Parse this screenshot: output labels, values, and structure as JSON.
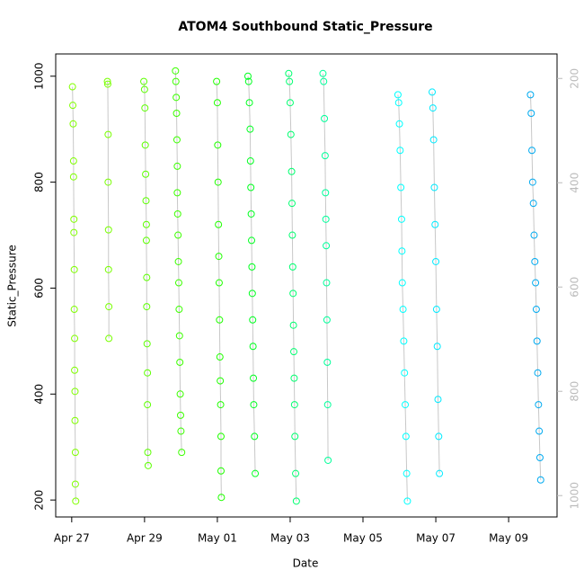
{
  "chart_data": {
    "type": "scatter",
    "title": "ATOM4 Southbound Static_Pressure",
    "x_label": "Date",
    "y_label": "Static_Pressure",
    "xlim": [
      26.56,
      40.33
    ],
    "ylim": [
      168,
      1042
    ],
    "y2lim": [
      1041,
      153
    ],
    "xticks": [
      {
        "value": 27,
        "label": "Apr 27"
      },
      {
        "value": 29,
        "label": "Apr 29"
      },
      {
        "value": 31,
        "label": "May 01"
      },
      {
        "value": 33,
        "label": "May 03"
      },
      {
        "value": 35,
        "label": "May 05"
      },
      {
        "value": 37,
        "label": "May 07"
      },
      {
        "value": 39,
        "label": "May 09"
      }
    ],
    "yticks": [
      200,
      400,
      600,
      800,
      1000
    ],
    "y2ticks": [
      200,
      400,
      600,
      800,
      1000
    ],
    "series": [
      {
        "color": "#80ff00",
        "x": [
          27.02,
          27.03,
          27.04,
          27.05,
          27.05,
          27.06,
          27.06,
          27.07,
          27.07,
          27.08,
          27.08,
          27.09,
          27.09,
          27.1,
          27.1,
          27.11
        ],
        "values": [
          980,
          945,
          910,
          840,
          810,
          730,
          705,
          635,
          560,
          505,
          445,
          405,
          350,
          290,
          230,
          198
        ]
      },
      {
        "color": "#78ff00",
        "x": [
          27.98,
          27.99,
          28.0,
          28.0,
          28.01,
          28.01,
          28.02,
          28.02
        ],
        "values": [
          990,
          985,
          890,
          800,
          710,
          635,
          565,
          505
        ]
      },
      {
        "color": "#5cff00",
        "x": [
          28.98,
          29.0,
          29.01,
          29.02,
          29.03,
          29.04,
          29.05,
          29.05,
          29.06,
          29.06,
          29.07,
          29.08,
          29.08,
          29.09,
          29.1
        ],
        "values": [
          990,
          975,
          940,
          870,
          815,
          765,
          720,
          690,
          620,
          565,
          495,
          440,
          380,
          290,
          265
        ]
      },
      {
        "color": "#3cff00",
        "x": [
          29.85,
          29.86,
          29.87,
          29.88,
          29.89,
          29.9,
          29.9,
          29.91,
          29.92,
          29.93,
          29.94,
          29.95,
          29.96,
          29.97,
          29.98,
          29.99,
          30.0,
          30.02
        ],
        "values": [
          1010,
          990,
          960,
          930,
          880,
          830,
          780,
          740,
          700,
          650,
          610,
          560,
          510,
          460,
          400,
          360,
          330,
          290
        ]
      },
      {
        "color": "#20ff00",
        "x": [
          30.98,
          31.0,
          31.01,
          31.02,
          31.03,
          31.04,
          31.05,
          31.06,
          31.07,
          31.08,
          31.09,
          31.1,
          31.1,
          31.11
        ],
        "values": [
          990,
          950,
          870,
          800,
          720,
          660,
          610,
          540,
          470,
          425,
          380,
          320,
          255,
          205
        ]
      },
      {
        "color": "#00ff20",
        "x": [
          31.84,
          31.86,
          31.88,
          31.9,
          31.91,
          31.92,
          31.93,
          31.94,
          31.95,
          31.96,
          31.97,
          31.98,
          31.99,
          32.0,
          32.02,
          32.04
        ],
        "values": [
          1000,
          990,
          950,
          900,
          840,
          790,
          740,
          690,
          640,
          590,
          540,
          490,
          430,
          380,
          320,
          250
        ]
      },
      {
        "color": "#00ff70",
        "x": [
          32.96,
          32.98,
          33.0,
          33.02,
          33.04,
          33.05,
          33.06,
          33.07,
          33.08,
          33.09,
          33.1,
          33.11,
          33.12,
          33.13,
          33.15,
          33.17
        ],
        "values": [
          1005,
          990,
          950,
          890,
          820,
          760,
          700,
          640,
          590,
          530,
          480,
          430,
          380,
          320,
          250,
          198
        ]
      },
      {
        "color": "#00ff9a",
        "x": [
          33.9,
          33.92,
          33.94,
          33.96,
          33.97,
          33.98,
          33.99,
          34.0,
          34.01,
          34.02,
          34.03,
          34.04
        ],
        "values": [
          1005,
          990,
          920,
          850,
          780,
          730,
          680,
          610,
          540,
          460,
          380,
          275
        ]
      },
      {
        "color": "#00ffff",
        "x": [
          35.96,
          35.98,
          36.0,
          36.02,
          36.04,
          36.06,
          36.07,
          36.08,
          36.1,
          36.12,
          36.14,
          36.16,
          36.18,
          36.2,
          36.22
        ],
        "values": [
          965,
          950,
          910,
          860,
          790,
          730,
          670,
          610,
          560,
          500,
          440,
          380,
          320,
          250,
          198
        ]
      },
      {
        "color": "#00eaff",
        "x": [
          36.9,
          36.92,
          36.94,
          36.96,
          36.98,
          37.0,
          37.02,
          37.04,
          37.06,
          37.08,
          37.1
        ],
        "values": [
          970,
          940,
          880,
          790,
          720,
          650,
          560,
          490,
          390,
          320,
          250
        ]
      },
      {
        "color": "#00aaf0",
        "x": [
          39.6,
          39.62,
          39.64,
          39.66,
          39.68,
          39.7,
          39.72,
          39.74,
          39.76,
          39.78,
          39.8,
          39.82,
          39.84,
          39.86,
          39.88
        ],
        "values": [
          965,
          930,
          860,
          800,
          760,
          700,
          650,
          610,
          560,
          500,
          440,
          380,
          330,
          280,
          238
        ]
      }
    ]
  }
}
